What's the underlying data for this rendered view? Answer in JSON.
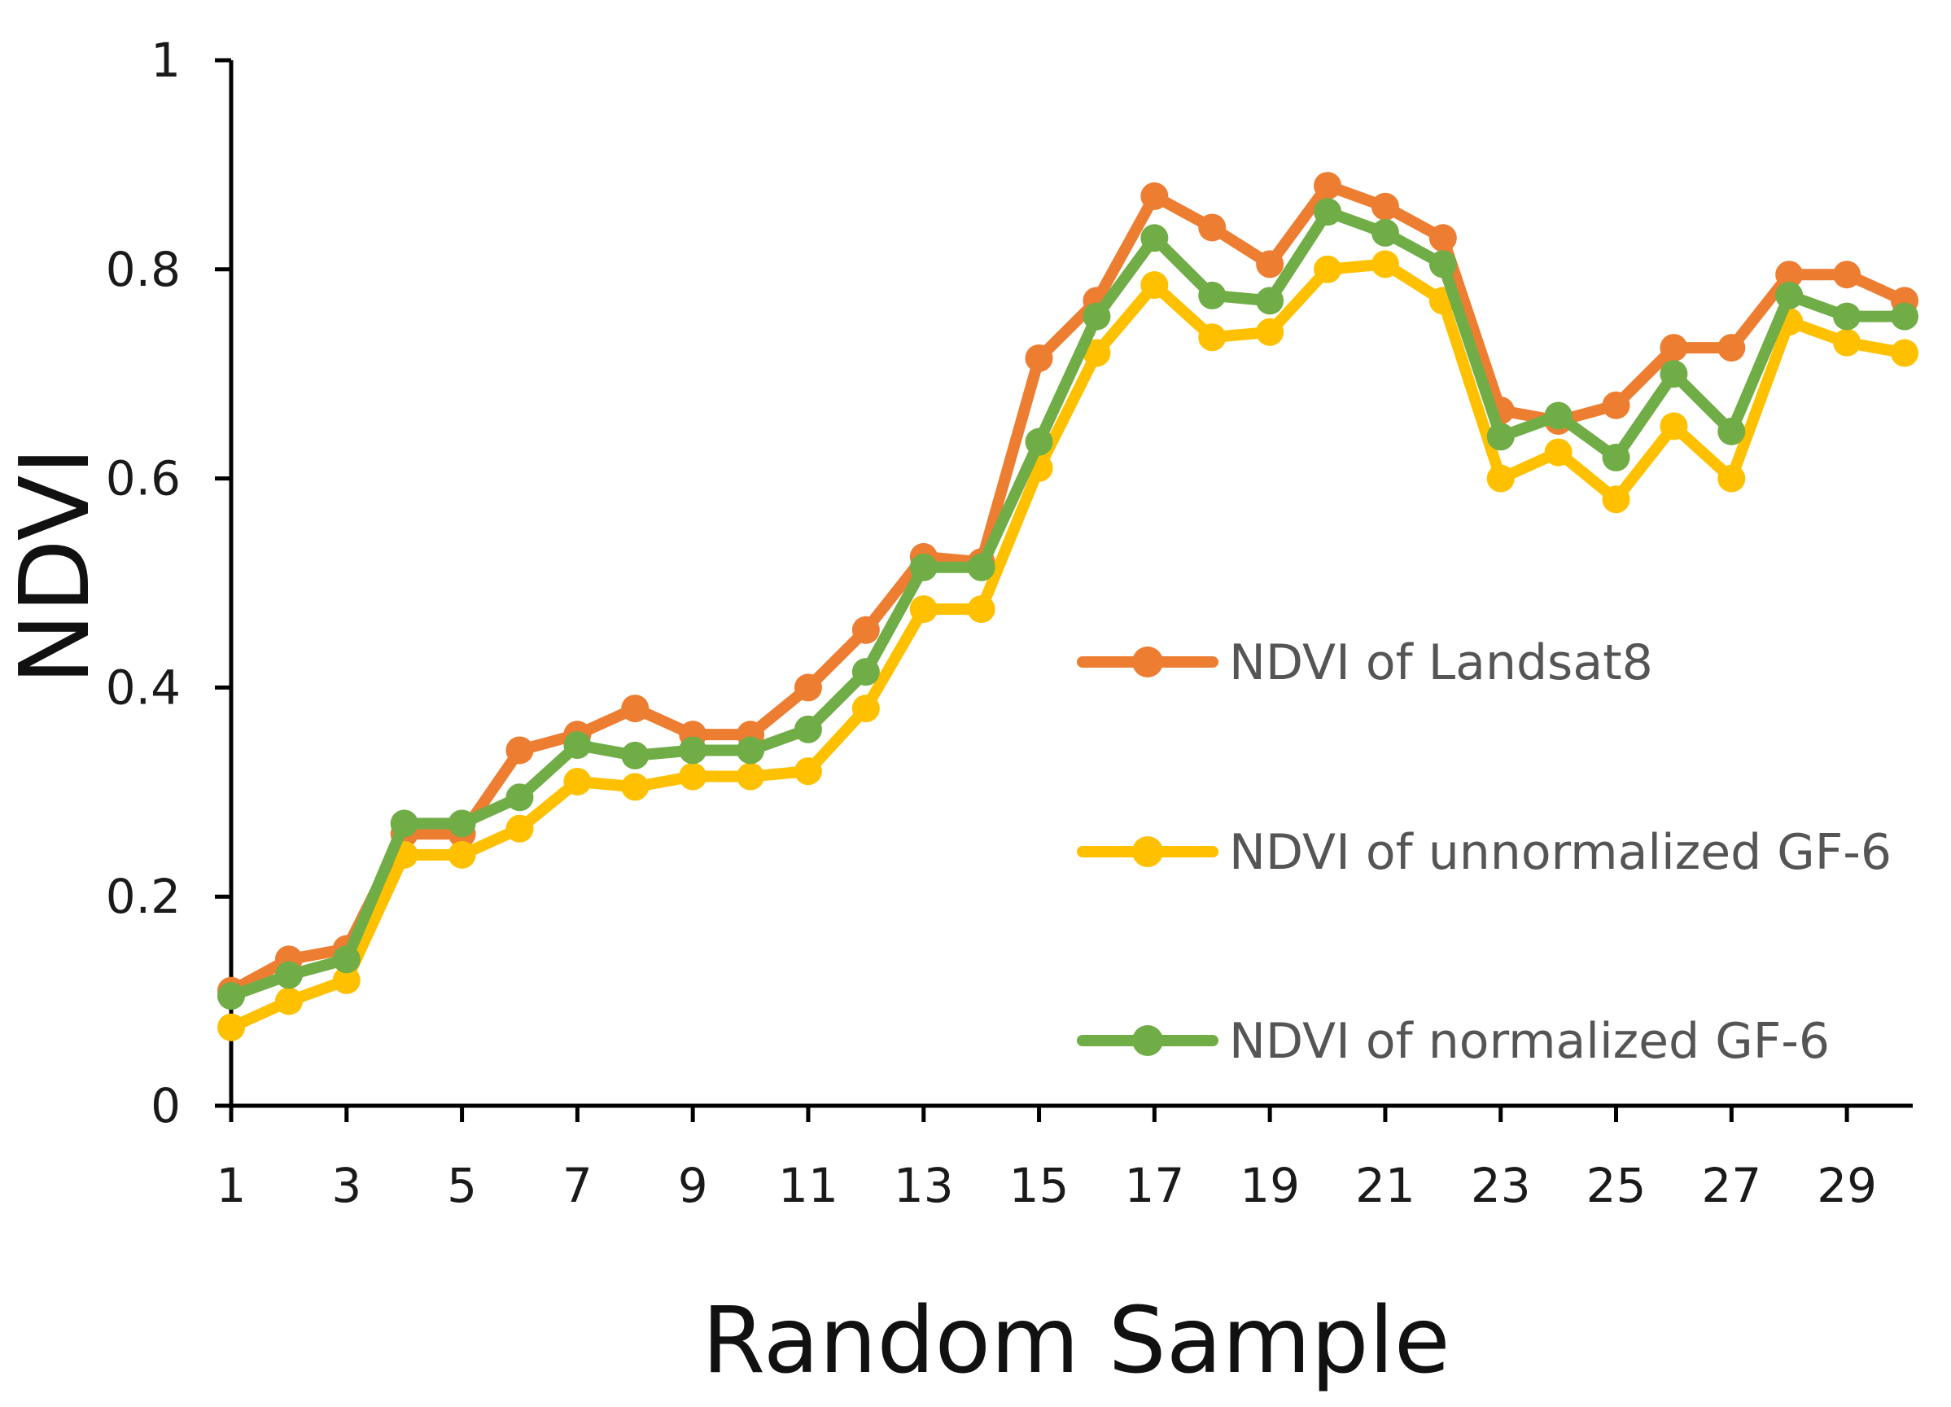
{
  "chart_data": {
    "type": "line",
    "title": "",
    "xlabel": "Random Sample",
    "ylabel": "NDVI",
    "x": [
      1,
      2,
      3,
      4,
      5,
      6,
      7,
      8,
      9,
      10,
      11,
      12,
      13,
      14,
      15,
      16,
      17,
      18,
      19,
      20,
      21,
      22,
      23,
      24,
      25,
      26,
      27,
      28,
      29,
      30
    ],
    "x_tick_labels": [
      "1",
      "3",
      "5",
      "7",
      "9",
      "11",
      "13",
      "15",
      "17",
      "19",
      "21",
      "23",
      "25",
      "27",
      "29"
    ],
    "y_tick_labels": [
      "0",
      "0.2",
      "0.4",
      "0.6",
      "0.8",
      "1"
    ],
    "ylim": [
      0,
      1
    ],
    "legend_position": "right-middle",
    "grid": false,
    "series": [
      {
        "name": "NDVI of Landsat8",
        "color": "#ED7D31",
        "values": [
          0.11,
          0.14,
          0.15,
          0.26,
          0.26,
          0.34,
          0.355,
          0.38,
          0.355,
          0.355,
          0.4,
          0.455,
          0.525,
          0.52,
          0.715,
          0.77,
          0.87,
          0.84,
          0.805,
          0.88,
          0.86,
          0.83,
          0.665,
          0.655,
          0.67,
          0.725,
          0.725,
          0.795,
          0.795,
          0.77
        ]
      },
      {
        "name": "NDVI of unnormalized GF-6",
        "color": "#FFC000",
        "values": [
          0.075,
          0.1,
          0.12,
          0.24,
          0.24,
          0.265,
          0.31,
          0.305,
          0.315,
          0.315,
          0.32,
          0.38,
          0.475,
          0.475,
          0.61,
          0.72,
          0.785,
          0.735,
          0.74,
          0.8,
          0.805,
          0.77,
          0.6,
          0.625,
          0.58,
          0.65,
          0.6,
          0.75,
          0.73,
          0.72
        ]
      },
      {
        "name": "NDVI of normalized GF-6",
        "color": "#70AD47",
        "values": [
          0.105,
          0.125,
          0.14,
          0.27,
          0.27,
          0.295,
          0.345,
          0.335,
          0.34,
          0.34,
          0.36,
          0.415,
          0.515,
          0.515,
          0.635,
          0.755,
          0.83,
          0.775,
          0.77,
          0.855,
          0.835,
          0.805,
          0.64,
          0.66,
          0.62,
          0.7,
          0.645,
          0.775,
          0.755,
          0.755
        ]
      }
    ]
  }
}
